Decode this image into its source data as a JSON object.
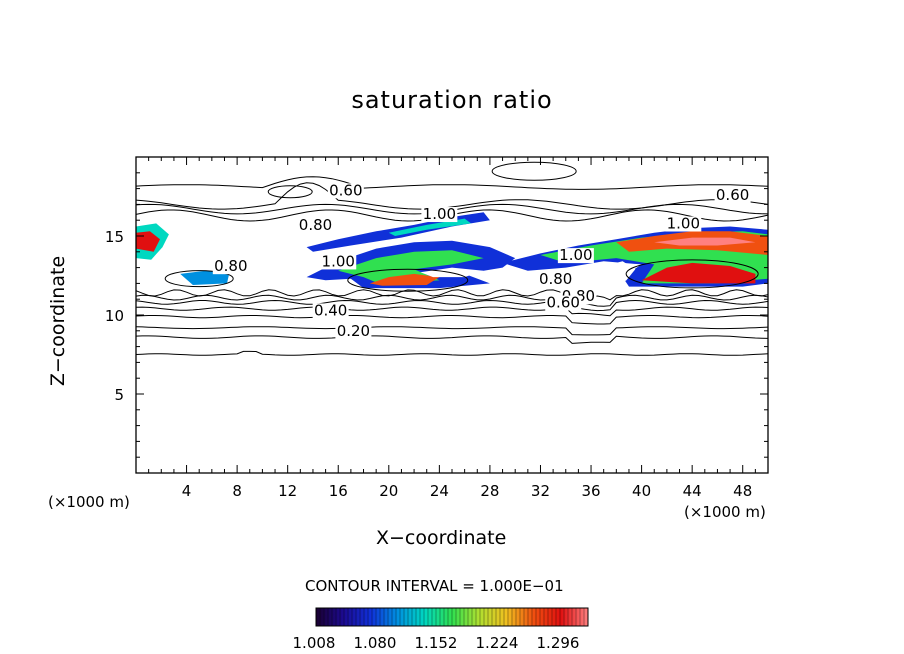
{
  "chart_data": {
    "type": "heatmap",
    "title": "saturation ratio",
    "xlabel": "X−coordinate",
    "ylabel": "Z−coordinate",
    "x_unit_label": "(×1000 m)",
    "xlim": [
      0,
      50
    ],
    "ylim": [
      0,
      20
    ],
    "x_ticks": [
      4,
      8,
      12,
      16,
      20,
      24,
      28,
      32,
      36,
      40,
      44,
      48
    ],
    "y_ticks": [
      5,
      10,
      15
    ],
    "contour_interval_label": "CONTOUR INTERVAL = 1.000E−01",
    "contour_labels": [
      {
        "text": "0.60",
        "x": 16.6,
        "z": 17.7
      },
      {
        "text": "0.80",
        "x": 14.2,
        "z": 15.5
      },
      {
        "text": "1.00",
        "x": 24.0,
        "z": 16.2
      },
      {
        "text": "0.80",
        "x": 7.5,
        "z": 12.9
      },
      {
        "text": "1.00",
        "x": 16.0,
        "z": 13.2
      },
      {
        "text": "0.40",
        "x": 15.4,
        "z": 10.1
      },
      {
        "text": "0.20",
        "x": 17.2,
        "z": 8.8
      },
      {
        "text": "1.00",
        "x": 34.8,
        "z": 13.6
      },
      {
        "text": "0.80",
        "x": 33.2,
        "z": 12.1
      },
      {
        "text": "0.80",
        "x": 35.0,
        "z": 11.0
      },
      {
        "text": "0.60",
        "x": 33.8,
        "z": 10.6
      },
      {
        "text": "1.00",
        "x": 43.3,
        "z": 15.6
      },
      {
        "text": "0.60",
        "x": 47.2,
        "z": 17.4
      }
    ],
    "colorbar": {
      "ticks": [
        "1.008",
        "1.080",
        "1.152",
        "1.224",
        "1.296"
      ],
      "range": [
        1.0,
        1.31
      ],
      "colors": [
        "#1a0030",
        "#1c0a90",
        "#1030d8",
        "#0090e0",
        "#00d8c0",
        "#30e050",
        "#b0e030",
        "#f0c020",
        "#f05010",
        "#e01010",
        "#ff8080"
      ]
    },
    "filled_regions_description_free": true
  }
}
